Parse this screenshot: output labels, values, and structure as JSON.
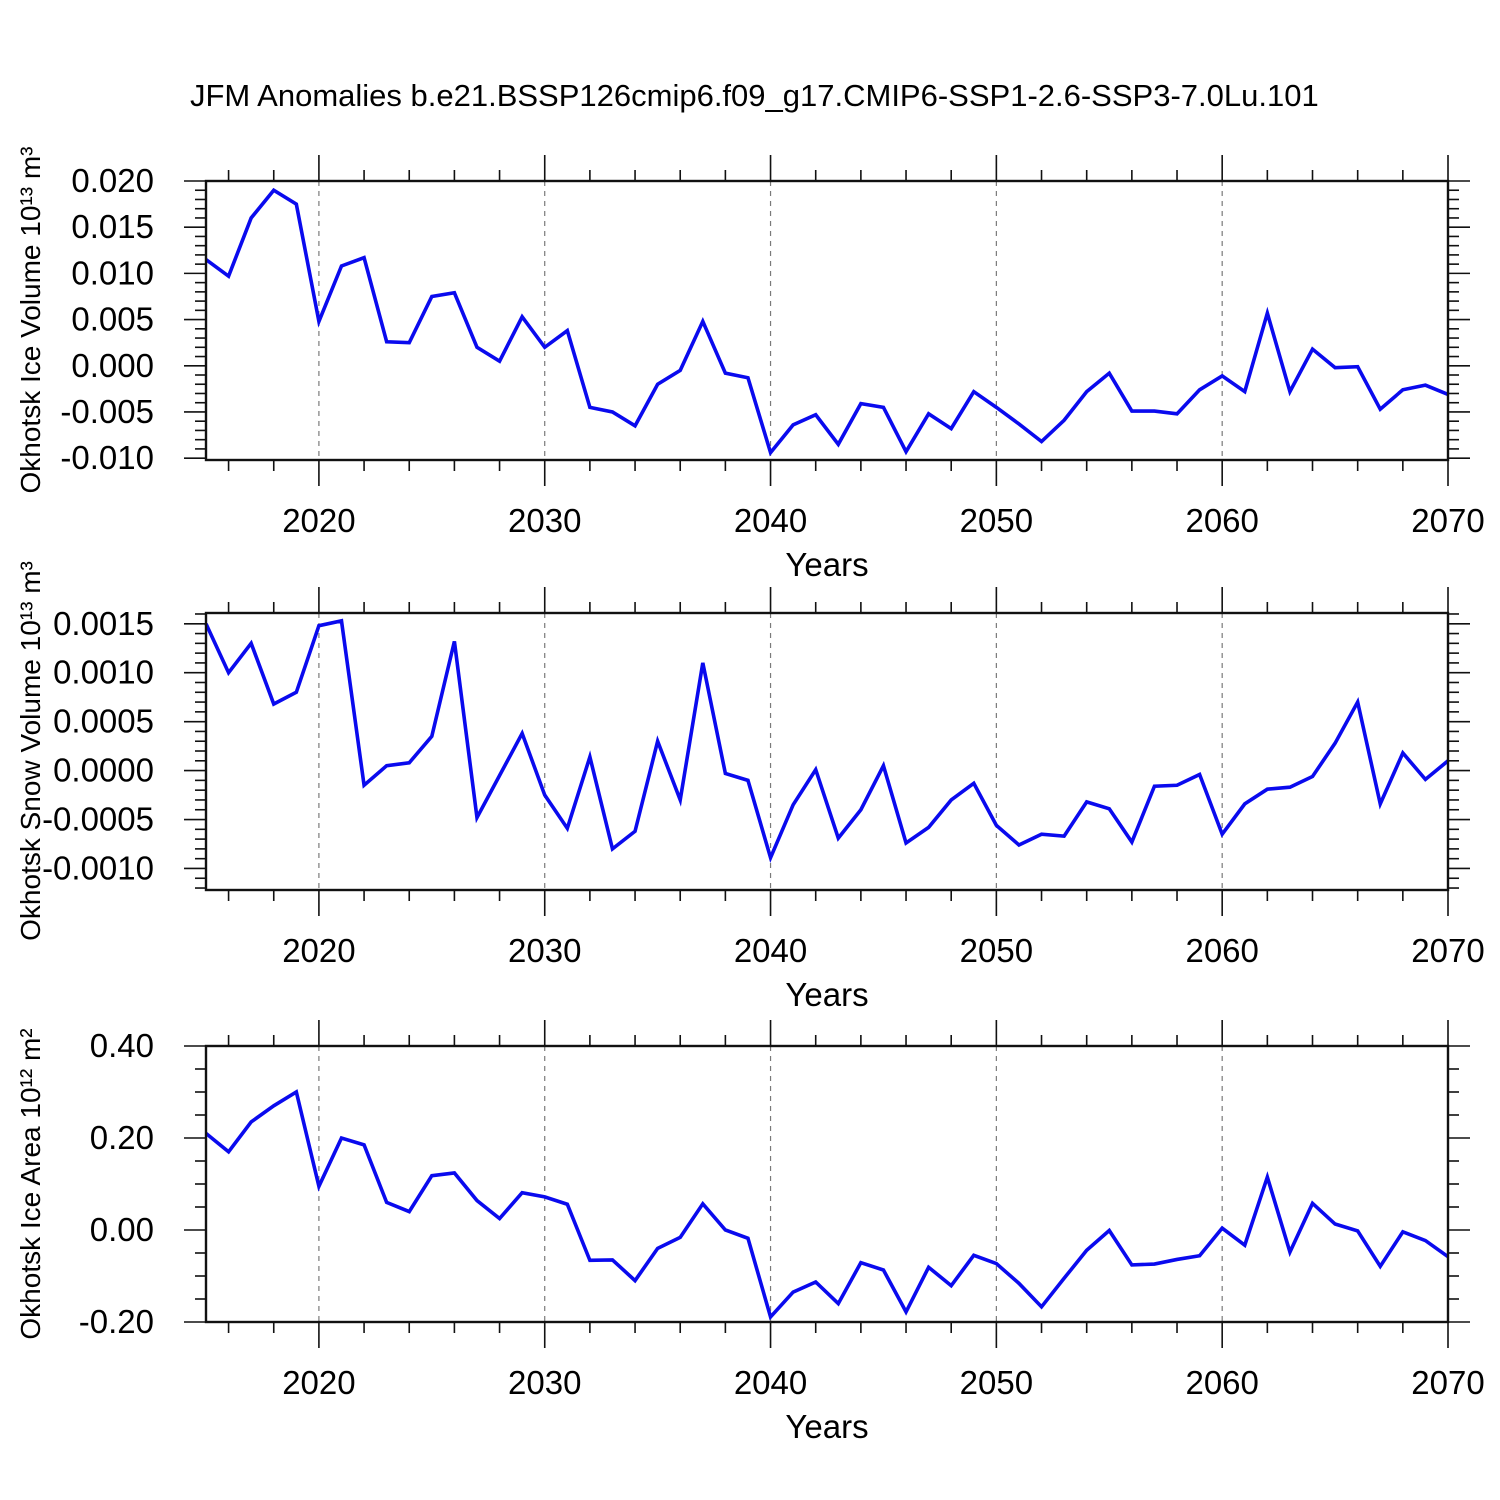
{
  "title": "JFM Anomalies b.e21.BSSP126cmip6.f09_g17.CMIP6-SSP1-2.6-SSP3-7.0Lu.101",
  "colors": {
    "line": "#0a0aee",
    "axis": "#111111",
    "grid": "#7a7a7a",
    "background": "#ffffff"
  },
  "x_axis": {
    "label": "Years",
    "start": 2015,
    "end": 2070,
    "major_ticks": [
      {
        "value": 2020,
        "label": "2020"
      },
      {
        "value": 2030,
        "label": "2030"
      },
      {
        "value": 2040,
        "label": "2040"
      },
      {
        "value": 2050,
        "label": "2050"
      },
      {
        "value": 2060,
        "label": "2060"
      },
      {
        "value": 2070,
        "label": "2070"
      }
    ],
    "minor_step": 2,
    "grid_years": [
      2020,
      2030,
      2040,
      2050,
      2060
    ]
  },
  "chart_data": [
    {
      "type": "line",
      "id": "ice-volume",
      "ylabel": "Okhotsk Ice Volume 10¹³ m³",
      "ylim": [
        -0.0102,
        0.02
      ],
      "y_ticks": [
        {
          "value": 0.02,
          "label": "0.020"
        },
        {
          "value": 0.015,
          "label": "0.015"
        },
        {
          "value": 0.01,
          "label": "0.010"
        },
        {
          "value": 0.005,
          "label": "0.005"
        },
        {
          "value": 0.0,
          "label": "0.000"
        },
        {
          "value": -0.005,
          "label": "-0.005"
        },
        {
          "value": -0.01,
          "label": "-0.010"
        }
      ],
      "y_minor_step": 0.001,
      "x_start": 2015,
      "values": [
        0.0115,
        0.0097,
        0.016,
        0.019,
        0.0175,
        0.0048,
        0.0108,
        0.0117,
        0.0026,
        0.0025,
        0.0075,
        0.0079,
        0.002,
        0.0005,
        0.0053,
        0.002,
        0.0038,
        -0.0045,
        -0.005,
        -0.0065,
        -0.002,
        -0.0005,
        0.0048,
        -0.0008,
        -0.0013,
        -0.0094,
        -0.0064,
        -0.0053,
        -0.0085,
        -0.0041,
        -0.0045,
        -0.0093,
        -0.0052,
        -0.0068,
        -0.0028,
        -0.0045,
        -0.0063,
        -0.0082,
        -0.0059,
        -0.0028,
        -0.0008,
        -0.0049,
        -0.0049,
        -0.0052,
        -0.0026,
        -0.0011,
        -0.0028,
        0.0057,
        -0.0028,
        0.0018,
        -0.0002,
        -0.0001,
        -0.0047,
        -0.0026,
        -0.0021,
        -0.0031
      ]
    },
    {
      "type": "line",
      "id": "snow-volume",
      "ylabel": "Okhotsk Snow Volume 10¹³ m³",
      "ylim": [
        -0.00122,
        0.00161
      ],
      "y_ticks": [
        {
          "value": 0.0015,
          "label": "0.0015"
        },
        {
          "value": 0.001,
          "label": "0.0010"
        },
        {
          "value": 0.0005,
          "label": "0.0005"
        },
        {
          "value": 0.0,
          "label": "0.0000"
        },
        {
          "value": -0.0005,
          "label": "-0.0005"
        },
        {
          "value": -0.001,
          "label": "-0.0010"
        }
      ],
      "y_minor_step": 0.0001,
      "x_start": 2015,
      "values": [
        0.0015,
        0.001,
        0.0013,
        0.00068,
        0.0008,
        0.00148,
        0.00153,
        -0.00015,
        5e-05,
        8e-05,
        0.00035,
        0.00132,
        -0.00048,
        -5e-05,
        0.00038,
        -0.00025,
        -0.00059,
        0.00014,
        -0.0008,
        -0.00062,
        0.0003,
        -0.0003,
        0.0011,
        -3e-05,
        -0.0001,
        -0.00089,
        -0.00035,
        1e-05,
        -0.00069,
        -0.0004,
        5e-05,
        -0.00074,
        -0.00058,
        -0.0003,
        -0.00013,
        -0.00056,
        -0.00076,
        -0.00065,
        -0.00067,
        -0.00032,
        -0.00039,
        -0.00073,
        -0.00016,
        -0.00015,
        -4e-05,
        -0.00065,
        -0.00034,
        -0.00019,
        -0.00017,
        -6e-05,
        0.00028,
        0.0007,
        -0.00034,
        0.00018,
        -9e-05,
        0.0001
      ]
    },
    {
      "type": "line",
      "id": "ice-area",
      "ylabel": "Okhotsk Ice Area 10¹² m²",
      "ylim": [
        -0.2,
        0.4
      ],
      "y_ticks": [
        {
          "value": 0.4,
          "label": "0.40"
        },
        {
          "value": 0.2,
          "label": "0.20"
        },
        {
          "value": 0.0,
          "label": "0.00"
        },
        {
          "value": -0.2,
          "label": "-0.20"
        }
      ],
      "y_minor_step": 0.05,
      "x_start": 2015,
      "values": [
        0.21,
        0.17,
        0.235,
        0.27,
        0.3,
        0.095,
        0.2,
        0.185,
        0.06,
        0.04,
        0.118,
        0.124,
        0.064,
        0.025,
        0.081,
        0.072,
        0.056,
        -0.066,
        -0.065,
        -0.11,
        -0.04,
        -0.016,
        0.057,
        0.0,
        -0.018,
        -0.189,
        -0.135,
        -0.113,
        -0.16,
        -0.071,
        -0.087,
        -0.178,
        -0.081,
        -0.121,
        -0.055,
        -0.073,
        -0.116,
        -0.167,
        -0.105,
        -0.044,
        -0.001,
        -0.076,
        -0.074,
        -0.064,
        -0.056,
        0.004,
        -0.033,
        0.115,
        -0.048,
        0.058,
        0.013,
        -0.002,
        -0.079,
        -0.004,
        -0.023,
        -0.058
      ]
    }
  ]
}
